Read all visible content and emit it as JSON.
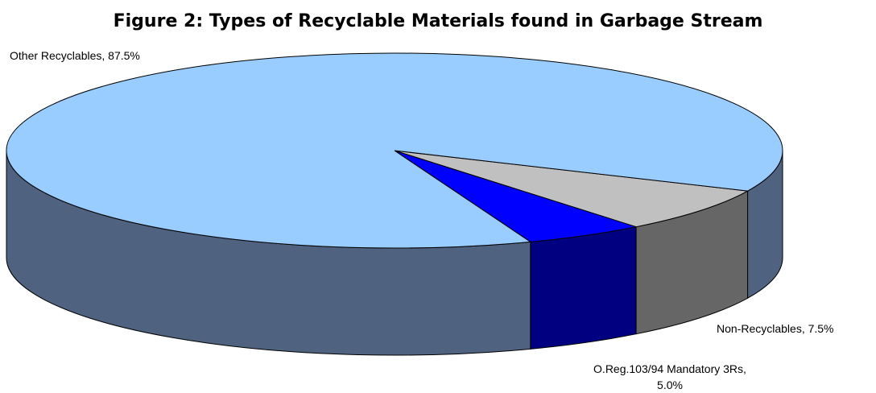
{
  "chart_data": {
    "type": "pie3d",
    "title": "Figure 2: Types of Recyclable Materials found in Garbage Stream",
    "values": [
      87.5,
      7.5,
      5.0
    ],
    "value_labels": [
      "Other Recyclables, 87.5%",
      "Non-Recyclables, 7.5%",
      "O.Reg.103/94 Mandatory 3Rs, 5.0%"
    ],
    "colors": [
      "#99ccff",
      "#c0c0c0",
      "#0000ff"
    ],
    "side_colors": [
      "#4f6280",
      "#666666",
      "#000080"
    ]
  }
}
